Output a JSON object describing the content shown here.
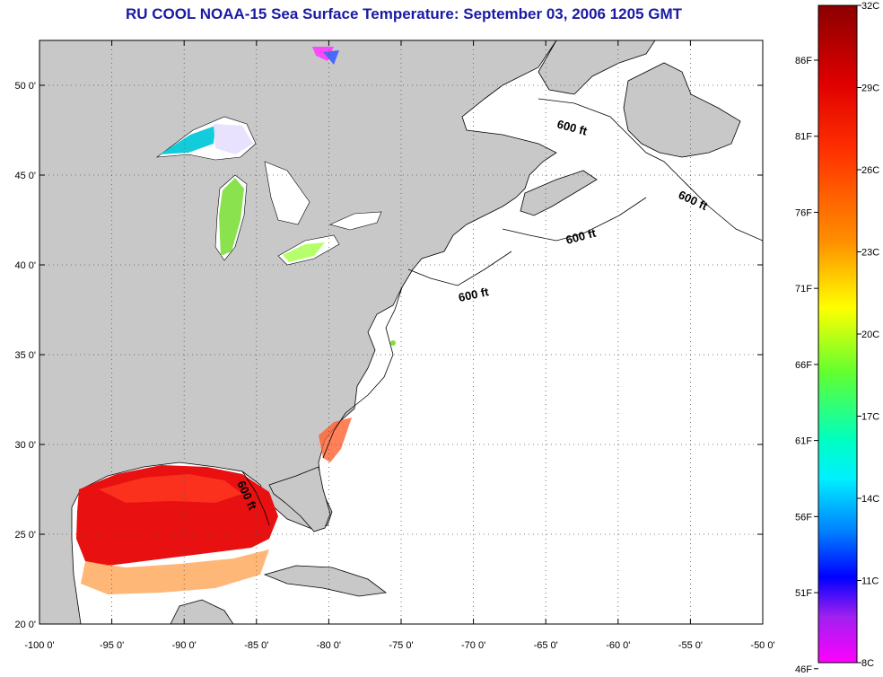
{
  "title": "RU COOL  NOAA-15  Sea Surface Temperature:  September 03, 2006 1205 GMT",
  "map": {
    "lon_range": [
      -100,
      -50
    ],
    "lat_range": [
      20,
      52.5
    ],
    "lon_ticks": [
      "-100 0'",
      "-95 0'",
      "-90 0'",
      "-85 0'",
      "-80 0'",
      "-75 0'",
      "-70 0'",
      "-65 0'",
      "-60 0'",
      "-55 0'",
      "-50 0'"
    ],
    "lat_ticks": [
      "20 0'",
      "25 0'",
      "30 0'",
      "35 0'",
      "40 0'",
      "45 0'",
      "50 0'"
    ],
    "grid": "dotted",
    "land_color": "#c8c8c8",
    "ocean_color": "#ffffff",
    "isobath_label": "600 ft"
  },
  "colorbar": {
    "celsius_labels": [
      "32C",
      "29C",
      "26C",
      "23C",
      "20C",
      "17C",
      "14C",
      "11C",
      "8C"
    ],
    "fahrenheit_labels": [
      "86F",
      "81F",
      "76F",
      "71F",
      "66F",
      "61F",
      "56F",
      "51F",
      "46F"
    ],
    "colors": [
      "#8b0000",
      "#ff0000",
      "#ff8c00",
      "#ffff00",
      "#7fff00",
      "#00ffff",
      "#0080ff",
      "#0000ff",
      "#ff00ff"
    ]
  }
}
